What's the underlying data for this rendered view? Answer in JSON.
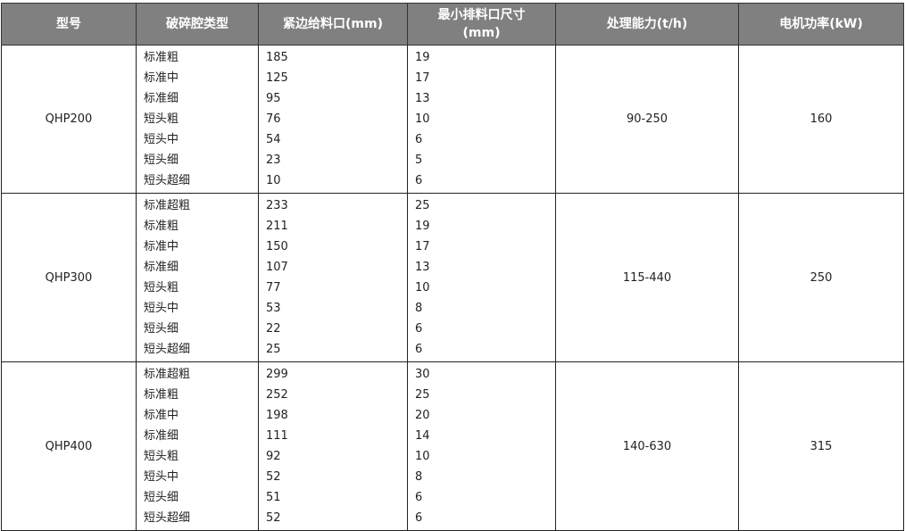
{
  "headers": [
    "型号",
    "破碎腔类型",
    "紧边给料口(mm)",
    "最小排料口尺寸(mm)",
    "处理能力(t/h)",
    "电机功率(kW)"
  ],
  "header_colors": {
    "background": "#808080",
    "text": "#ffffff"
  },
  "rows": [
    {
      "model": "QHP200",
      "cavities": [
        "标准粗",
        "标准中",
        "标准细",
        "短头粗",
        "短头中",
        "短头细",
        "短头超细"
      ],
      "feed": [
        "185",
        "125",
        "95",
        "76",
        "54",
        "23",
        "10"
      ],
      "discharge": [
        "19",
        "17",
        "13",
        "10",
        "6",
        "5",
        "6"
      ],
      "capacity": "90-250",
      "power": "160"
    },
    {
      "model": "QHP300",
      "cavities": [
        "标准超粗",
        "标准粗",
        "标准中",
        "标准细",
        "短头粗",
        "短头中",
        "短头细",
        "短头超细"
      ],
      "feed": [
        "233",
        "211",
        "150",
        "107",
        "77",
        "53",
        "22",
        "25"
      ],
      "discharge": [
        "25",
        "19",
        "17",
        "13",
        "10",
        "8",
        "6",
        "6"
      ],
      "capacity": "115-440",
      "power": "250"
    },
    {
      "model": "QHP400",
      "cavities": [
        "标准超粗",
        "标准粗",
        "标准中",
        "标准细",
        "短头粗",
        "短头中",
        "短头细",
        "短头超细"
      ],
      "feed": [
        "299",
        "252",
        "198",
        "111",
        "92",
        "52",
        "51",
        "52"
      ],
      "discharge": [
        "30",
        "25",
        "20",
        "14",
        "10",
        "8",
        "6",
        "6"
      ],
      "capacity": "140-630",
      "power": "315"
    }
  ]
}
